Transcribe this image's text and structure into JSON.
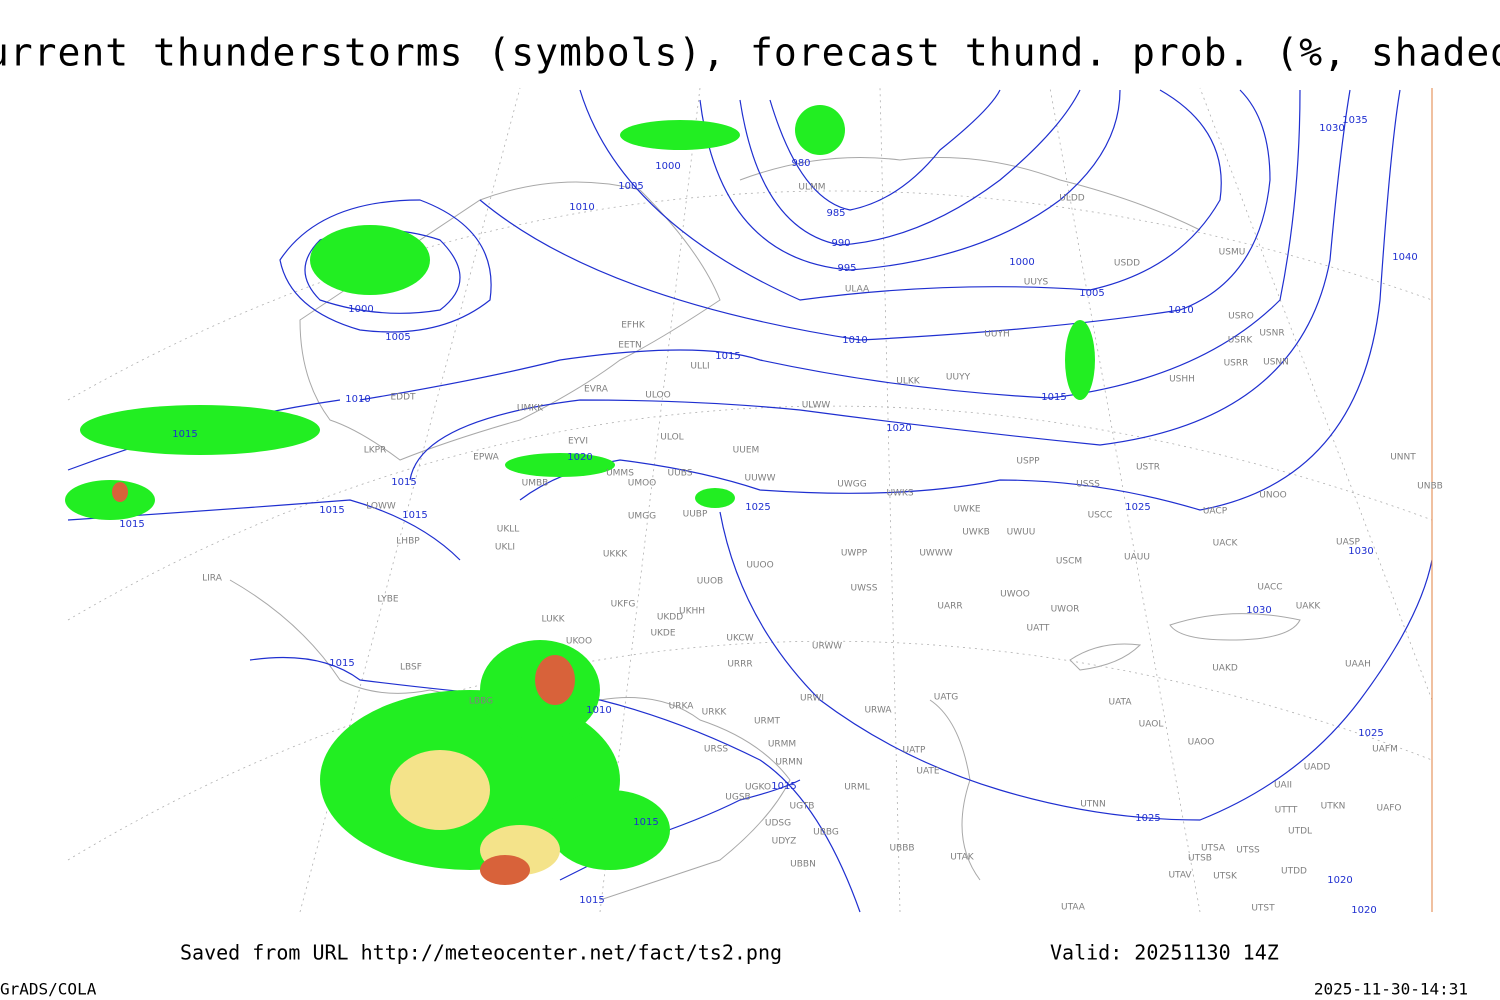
{
  "title": "Current thunderstorms (symbols), forecast thund. prob. (%, shaded)",
  "isobar_labels": [
    980,
    985,
    990,
    995,
    1000,
    1000,
    1000,
    1005,
    1005,
    1005,
    1010,
    1010,
    1010,
    1010,
    1010,
    1015,
    1015,
    1015,
    1015,
    1015,
    1015,
    1015,
    1015,
    1015,
    1015,
    1015,
    1020,
    1020,
    1020,
    1020,
    1025,
    1025,
    1025,
    1025,
    1030,
    1030,
    1030,
    1035,
    1040
  ],
  "stations": [
    "ULMM",
    "ULDD",
    "USDD",
    "UUYS",
    "ULAA",
    "USMU",
    "USRO",
    "USNR",
    "USRK",
    "USRR",
    "USNN",
    "USHH",
    "UUYH",
    "UUYY",
    "ULKK",
    "EFHK",
    "EETN",
    "ULLI",
    "EVRA",
    "ULOO",
    "ULWW",
    "UMKK",
    "ULOL",
    "UUEM",
    "EYVI",
    "EPWA",
    "UMMS",
    "UUBS",
    "UMOO",
    "UUWW",
    "UWGG",
    "UWKS",
    "USSS",
    "USTR",
    "USPP",
    "UNOO",
    "UNNT",
    "UNBB",
    "UMBB",
    "UMGG",
    "UUBP",
    "UWKE",
    "UWKB",
    "UWUU",
    "USCC",
    "UACP",
    "LOWW",
    "LKPR",
    "EDDT",
    "UKLL",
    "UKLI",
    "LHBP",
    "UKKK",
    "UUOO",
    "UWPP",
    "UWWW",
    "USCM",
    "UAUU",
    "UACK",
    "UASP",
    "UUOB",
    "UWSS",
    "UACC",
    "UKHH",
    "UKDD",
    "UKFG",
    "LUKK",
    "UARR",
    "UWOO",
    "UWOR",
    "UAKK",
    "LIRA",
    "LYBE",
    "UKOO",
    "UKDE",
    "UKCW",
    "URWW",
    "UATT",
    "LBSF",
    "URRR",
    "UAKD",
    "UAAH",
    "LBBG",
    "URWI",
    "UATG",
    "URKA",
    "URKK",
    "URMT",
    "URWA",
    "UATA",
    "UAOL",
    "URSS",
    "URMM",
    "URMN",
    "UATP",
    "UATE",
    "UAOO",
    "UADD",
    "UAFM",
    "UGKO",
    "UGSB",
    "URML",
    "UAII",
    "UGTB",
    "UTNN",
    "UTTT",
    "UTKN",
    "UAFO",
    "UDSG",
    "UBBG",
    "UDYZ",
    "UTDL",
    "UBBB",
    "UTSA",
    "UTSS",
    "UTSB",
    "UTAK",
    "UBBN",
    "UTAV",
    "UTSK",
    "UTDD",
    "UTAA",
    "UTST"
  ],
  "footer": {
    "saved": "Saved from URL http://meteocenter.net/fact/ts2.png",
    "valid": "Valid: 20251130 14Z",
    "software": "GrADS/COLA",
    "timestamp": "2025-11-30-14:31"
  }
}
